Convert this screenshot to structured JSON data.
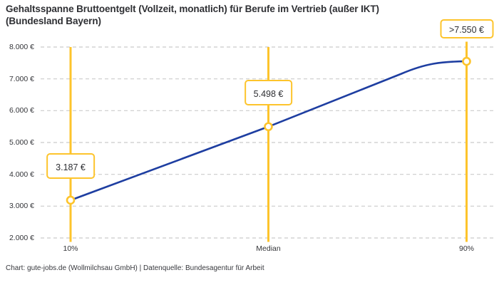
{
  "title": {
    "line1": "Gehaltsspanne Bruttoentgelt (Vollzeit, monatlich) für Berufe im Vertrieb (außer IKT)",
    "line2": "(Bundesland Bayern)"
  },
  "footer": "Chart: gute-jobs.de (Wollmilchsau GmbH) | Datenquelle: Bundesagentur für Arbeit",
  "colors": {
    "accent_yellow": "#FDC42C",
    "line_blue": "#1E3EA1",
    "grid_gray": "#CBCBCB",
    "text_dark": "#2E2F33"
  },
  "chart_data": {
    "type": "line",
    "title": "Gehaltsspanne Bruttoentgelt (Vollzeit, monatlich) für Berufe im Vertrieb (außer IKT) (Bundesland Bayern)",
    "categories": [
      "10%",
      "Median",
      "90%"
    ],
    "values": [
      3187,
      5498,
      7550
    ],
    "point_labels": [
      "3.187 €",
      "5.498 €",
      ">7.550 €"
    ],
    "ylim": [
      2000,
      8000
    ],
    "ytick_values": [
      8000,
      7000,
      6000,
      5000,
      4000,
      3000,
      2000
    ],
    "ytick_labels": [
      "8.000 €",
      "7.000 €",
      "6.000 €",
      "5.000 €",
      "4.000 €",
      "3.000 €",
      "2.000 €"
    ],
    "xlabel": "",
    "ylabel": "",
    "grid": "horizontal-dashed",
    "legend": "none",
    "notes": "vertical accent guide line at each percentile with circular marker and boxed value label"
  }
}
